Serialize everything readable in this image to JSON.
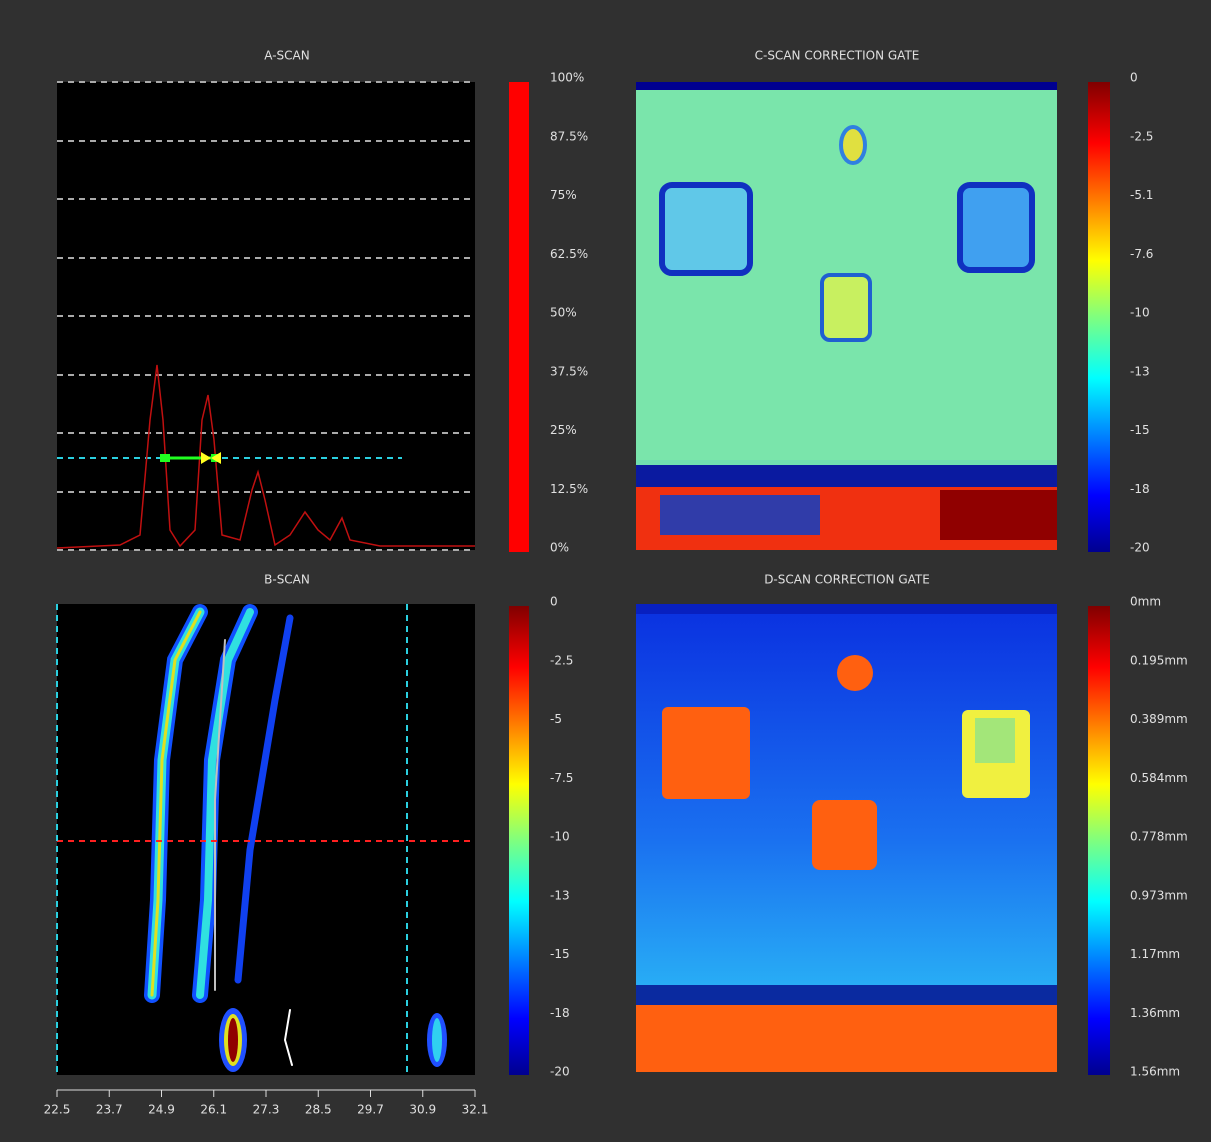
{
  "panels": [
    {
      "title": "A-SCAN",
      "colorbar_labels": [
        "100%",
        "87.5%",
        "75%",
        "62.5%",
        "50%",
        "37.5%",
        "25%",
        "12.5%",
        "0%"
      ]
    },
    {
      "title": "C-SCAN CORRECTION GATE",
      "colorbar_labels": [
        "0",
        "-2.5",
        "-5.1",
        "-7.6",
        "-10",
        "-13",
        "-15",
        "-18",
        "-20"
      ]
    },
    {
      "title": "B-SCAN",
      "colorbar_labels": [
        "0",
        "-2.5",
        "-5",
        "-7.5",
        "-10",
        "-13",
        "-15",
        "-18",
        "-20"
      ]
    },
    {
      "title": "D-SCAN CORRECTION GATE",
      "colorbar_labels": [
        "0mm",
        "0.195mm",
        "0.389mm",
        "0.584mm",
        "0.778mm",
        "0.973mm",
        "1.17mm",
        "1.36mm",
        "1.56mm"
      ]
    }
  ],
  "b_scan_axis_labels": [
    "22.5",
    "23.7",
    "24.9",
    "26.1",
    "27.3",
    "28.5",
    "29.7",
    "30.9",
    "32.1"
  ]
}
